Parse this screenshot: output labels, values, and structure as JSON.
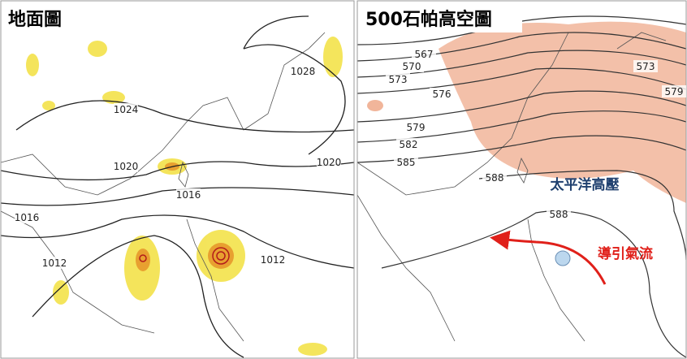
{
  "panels": [
    {
      "title": "地面圖",
      "contour_labels": [
        "1028",
        "1024",
        "1020",
        "1020",
        "1016",
        "1016",
        "1012",
        "1012"
      ]
    },
    {
      "title": "500石帕高空圖",
      "contour_labels": [
        "567",
        "570",
        "573",
        "576",
        "579",
        "582",
        "585",
        "588",
        "588",
        "579",
        "573"
      ],
      "annotations": [
        "太平洋高壓",
        "導引氣流"
      ]
    }
  ]
}
